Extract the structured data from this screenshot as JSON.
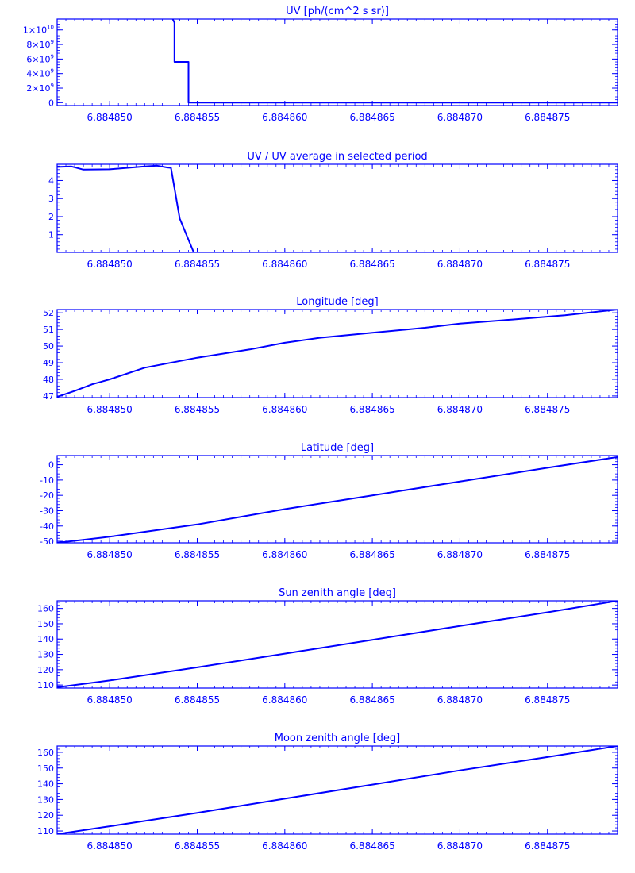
{
  "style": {
    "color": "#0000ff",
    "background": "#ffffff"
  },
  "chart_data": [
    {
      "type": "line",
      "title": "UV [ph/(cm^2 s sr)]",
      "x": [
        6.884847,
        6.8848535,
        6.8848537,
        6.8848537,
        6.8848545,
        6.8848545,
        6.884879
      ],
      "y": [
        null,
        12000000000.0,
        11000000000.0,
        5600000000.0,
        5600000000.0,
        0,
        0
      ],
      "xlim": [
        6.884847,
        6.884879
      ],
      "ylim": [
        -400000000.0,
        11500000000.0
      ],
      "xticks": [
        6.88485,
        6.884855,
        6.88486,
        6.884865,
        6.88487,
        6.884875
      ],
      "xtick_labels": [
        "6.884850",
        "6.884855",
        "6.884860",
        "6.884865",
        "6.884870",
        "6.884875"
      ],
      "yticks": [
        0,
        2000000000.0,
        4000000000.0,
        6000000000.0,
        8000000000.0,
        10000000000.0
      ],
      "ytick_labels": [
        {
          "base": "0",
          "exp": ""
        },
        {
          "base": "2×10",
          "exp": "9"
        },
        {
          "base": "4×10",
          "exp": "9"
        },
        {
          "base": "6×10",
          "exp": "9"
        },
        {
          "base": "8×10",
          "exp": "9"
        },
        {
          "base": "1×10",
          "exp": "10"
        }
      ],
      "grid": false
    },
    {
      "type": "line",
      "title": "UV / UV average in selected period",
      "x": [
        6.884847,
        6.8848478,
        6.8848485,
        6.88485,
        6.884852,
        6.8848527,
        6.8848533,
        6.8848535,
        6.884854,
        6.8848548,
        6.884879
      ],
      "y": [
        4.75,
        4.78,
        4.6,
        4.62,
        4.78,
        4.82,
        4.72,
        4.7,
        1.9,
        0.02,
        0.02
      ],
      "xlim": [
        6.884847,
        6.884879
      ],
      "ylim": [
        0.02,
        4.9
      ],
      "xticks": [
        6.88485,
        6.884855,
        6.88486,
        6.884865,
        6.88487,
        6.884875
      ],
      "xtick_labels": [
        "6.884850",
        "6.884855",
        "6.884860",
        "6.884865",
        "6.884870",
        "6.884875"
      ],
      "yticks": [
        1,
        2,
        3,
        4
      ],
      "ytick_labels": [
        "1",
        "2",
        "3",
        "4"
      ],
      "grid": false
    },
    {
      "type": "line",
      "title": "Longitude [deg]",
      "x": [
        6.884847,
        6.884848,
        6.884849,
        6.88485,
        6.884852,
        6.884855,
        6.884858,
        6.88486,
        6.884862,
        6.884865,
        6.884868,
        6.88487,
        6.884873,
        6.884876,
        6.884879
      ],
      "y": [
        46.95,
        47.3,
        47.7,
        48.0,
        48.7,
        49.3,
        49.8,
        50.2,
        50.5,
        50.8,
        51.1,
        51.35,
        51.6,
        51.85,
        52.2
      ],
      "xlim": [
        6.884847,
        6.884879
      ],
      "ylim": [
        46.9,
        52.2
      ],
      "xticks": [
        6.88485,
        6.884855,
        6.88486,
        6.884865,
        6.88487,
        6.884875
      ],
      "xtick_labels": [
        "6.884850",
        "6.884855",
        "6.884860",
        "6.884865",
        "6.884870",
        "6.884875"
      ],
      "yticks": [
        47,
        48,
        49,
        50,
        51,
        52
      ],
      "ytick_labels": [
        "47",
        "48",
        "49",
        "50",
        "51",
        "52"
      ],
      "grid": false
    },
    {
      "type": "line",
      "title": "Latitude [deg]",
      "x": [
        6.884847,
        6.88485,
        6.884855,
        6.88486,
        6.884865,
        6.88487,
        6.884875,
        6.884879
      ],
      "y": [
        -51,
        -47,
        -39,
        -29,
        -20,
        -11,
        -2,
        5
      ],
      "xlim": [
        6.884847,
        6.884879
      ],
      "ylim": [
        -51,
        6
      ],
      "xticks": [
        6.88485,
        6.884855,
        6.88486,
        6.884865,
        6.88487,
        6.884875
      ],
      "xtick_labels": [
        "6.884850",
        "6.884855",
        "6.884860",
        "6.884865",
        "6.884870",
        "6.884875"
      ],
      "yticks": [
        -50,
        -40,
        -30,
        -20,
        -10,
        0
      ],
      "ytick_labels": [
        "-50",
        "-40",
        "-30",
        "-20",
        "-10",
        "0"
      ],
      "grid": false
    },
    {
      "type": "line",
      "title": "Sun zenith angle [deg]",
      "x": [
        6.884847,
        6.88485,
        6.884855,
        6.88486,
        6.884865,
        6.88487,
        6.884875,
        6.884879
      ],
      "y": [
        108.5,
        113,
        121.5,
        130.5,
        139.5,
        148.5,
        157.5,
        165
      ],
      "xlim": [
        6.884847,
        6.884879
      ],
      "ylim": [
        108,
        165
      ],
      "xticks": [
        6.88485,
        6.884855,
        6.88486,
        6.884865,
        6.88487,
        6.884875
      ],
      "xtick_labels": [
        "6.884850",
        "6.884855",
        "6.884860",
        "6.884865",
        "6.884870",
        "6.884875"
      ],
      "yticks": [
        110,
        120,
        130,
        140,
        150,
        160
      ],
      "ytick_labels": [
        "110",
        "120",
        "130",
        "140",
        "150",
        "160"
      ],
      "grid": false
    },
    {
      "type": "line",
      "title": "Moon zenith angle [deg]",
      "x": [
        6.884847,
        6.88485,
        6.884855,
        6.88486,
        6.884865,
        6.88487,
        6.884875,
        6.884879
      ],
      "y": [
        108,
        113,
        121.5,
        130.5,
        139.5,
        148.5,
        157,
        164
      ],
      "xlim": [
        6.884847,
        6.884879
      ],
      "ylim": [
        108,
        164
      ],
      "xticks": [
        6.88485,
        6.884855,
        6.88486,
        6.884865,
        6.88487,
        6.884875
      ],
      "xtick_labels": [
        "6.884850",
        "6.884855",
        "6.884860",
        "6.884865",
        "6.884870",
        "6.884875"
      ],
      "yticks": [
        110,
        120,
        130,
        140,
        150,
        160
      ],
      "ytick_labels": [
        "110",
        "120",
        "130",
        "140",
        "150",
        "160"
      ],
      "grid": false
    }
  ]
}
